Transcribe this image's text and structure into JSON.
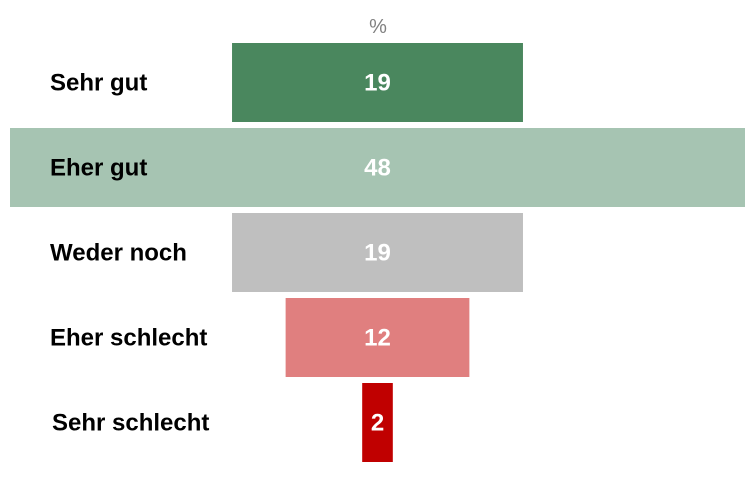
{
  "chart_data": {
    "type": "bar",
    "unit_label": "%",
    "categories": [
      "Sehr gut",
      "Eher gut",
      "Weder noch",
      "Eher schlecht",
      "Sehr schlecht"
    ],
    "values": [
      19,
      48,
      19,
      12,
      2
    ],
    "colors": [
      "#4a875e",
      "#a6c4b2",
      "#bfbfbf",
      "#e07f7f",
      "#c00000"
    ],
    "xlim": [
      0,
      48
    ],
    "grid": false,
    "legend": "none"
  }
}
